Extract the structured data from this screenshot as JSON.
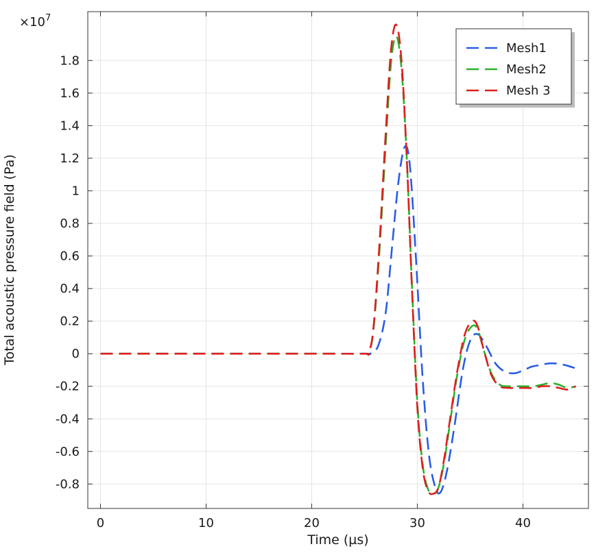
{
  "chart_data": {
    "type": "line",
    "title": "",
    "xlabel": "Time (µs)",
    "ylabel": "Total acoustic pressure field (Pa)",
    "y_multiplier": "×10",
    "y_multiplier_exp": "7",
    "xlim": [
      -1.2,
      46.2
    ],
    "ylim": [
      -0.95,
      2.1
    ],
    "x_ticks": [
      0,
      10,
      20,
      30,
      40
    ],
    "x_tick_labels": [
      "0",
      "10",
      "20",
      "30",
      "40"
    ],
    "y_ticks": [
      -0.8,
      -0.6,
      -0.4,
      -0.2,
      0,
      0.2,
      0.4,
      0.6,
      0.8,
      1,
      1.2,
      1.4,
      1.6,
      1.8
    ],
    "y_tick_labels": [
      "-0.8",
      "-0.6",
      "-0.4",
      "-0.2",
      "0",
      "0.2",
      "0.4",
      "0.6",
      "0.8",
      "1",
      "1.2",
      "1.4",
      "1.6",
      "1.8"
    ],
    "grid": true,
    "legend_position": "top-right",
    "series": [
      {
        "name": "Mesh1",
        "color": "#2a5ce6",
        "style": "dashed",
        "x": [
          0,
          10,
          20,
          25,
          25.6,
          26.3,
          27,
          27.6,
          28.2,
          28.8,
          29.3,
          29.9,
          30.5,
          31.1,
          31.7,
          32.2,
          32.8,
          33.5,
          34.3,
          35,
          35.7,
          36.5,
          37.4,
          38.3,
          39.2,
          40.1,
          40.8,
          41.6,
          42.4,
          43.1,
          44,
          45
        ],
        "y": [
          0,
          0,
          0,
          0,
          0.003,
          0.05,
          0.25,
          0.65,
          1.05,
          1.27,
          1.15,
          0.55,
          -0.15,
          -0.62,
          -0.82,
          -0.85,
          -0.72,
          -0.45,
          -0.1,
          0.08,
          0.12,
          0.05,
          -0.06,
          -0.11,
          -0.12,
          -0.1,
          -0.08,
          -0.07,
          -0.06,
          -0.06,
          -0.07,
          -0.09
        ]
      },
      {
        "name": "Mesh2",
        "color": "#2ab02a",
        "style": "dashed",
        "x": [
          0,
          10,
          20,
          25,
          25.3,
          25.8,
          26.4,
          27,
          27.5,
          28,
          28.5,
          29,
          29.5,
          30,
          30.5,
          31,
          31.4,
          31.9,
          32.5,
          33.1,
          33.8,
          34.5,
          35.2,
          35.7,
          36.3,
          37,
          37.8,
          38.6,
          39.4,
          40.2,
          41,
          41.8,
          42.6,
          43.4,
          44.2,
          45
        ],
        "y": [
          0,
          0,
          0,
          0,
          0.005,
          0.12,
          0.62,
          1.28,
          1.78,
          1.95,
          1.75,
          1.2,
          0.4,
          -0.3,
          -0.68,
          -0.83,
          -0.85,
          -0.84,
          -0.68,
          -0.42,
          -0.12,
          0.09,
          0.17,
          0.15,
          0.02,
          -0.12,
          -0.19,
          -0.2,
          -0.2,
          -0.2,
          -0.2,
          -0.19,
          -0.18,
          -0.19,
          -0.21,
          -0.2
        ]
      },
      {
        "name": "Mesh 3",
        "color": "#dd1f1f",
        "style": "dashed",
        "x": [
          0,
          10,
          20,
          25,
          25.3,
          25.8,
          26.4,
          27,
          27.5,
          28,
          28.5,
          29,
          29.5,
          30,
          30.5,
          31,
          31.5,
          32,
          32.5,
          33.1,
          33.8,
          34.5,
          35.2,
          35.7,
          36.3,
          37,
          37.8,
          38.6,
          39.4,
          40.2,
          41,
          41.8,
          42.6,
          43.4,
          44.2,
          45
        ],
        "y": [
          0,
          0,
          0,
          0,
          0.005,
          0.13,
          0.66,
          1.35,
          1.86,
          2.02,
          1.8,
          1.2,
          0.38,
          -0.33,
          -0.7,
          -0.84,
          -0.86,
          -0.82,
          -0.66,
          -0.4,
          -0.1,
          0.12,
          0.2,
          0.17,
          0.02,
          -0.13,
          -0.2,
          -0.21,
          -0.21,
          -0.21,
          -0.21,
          -0.2,
          -0.2,
          -0.21,
          -0.22,
          -0.2
        ]
      }
    ]
  }
}
